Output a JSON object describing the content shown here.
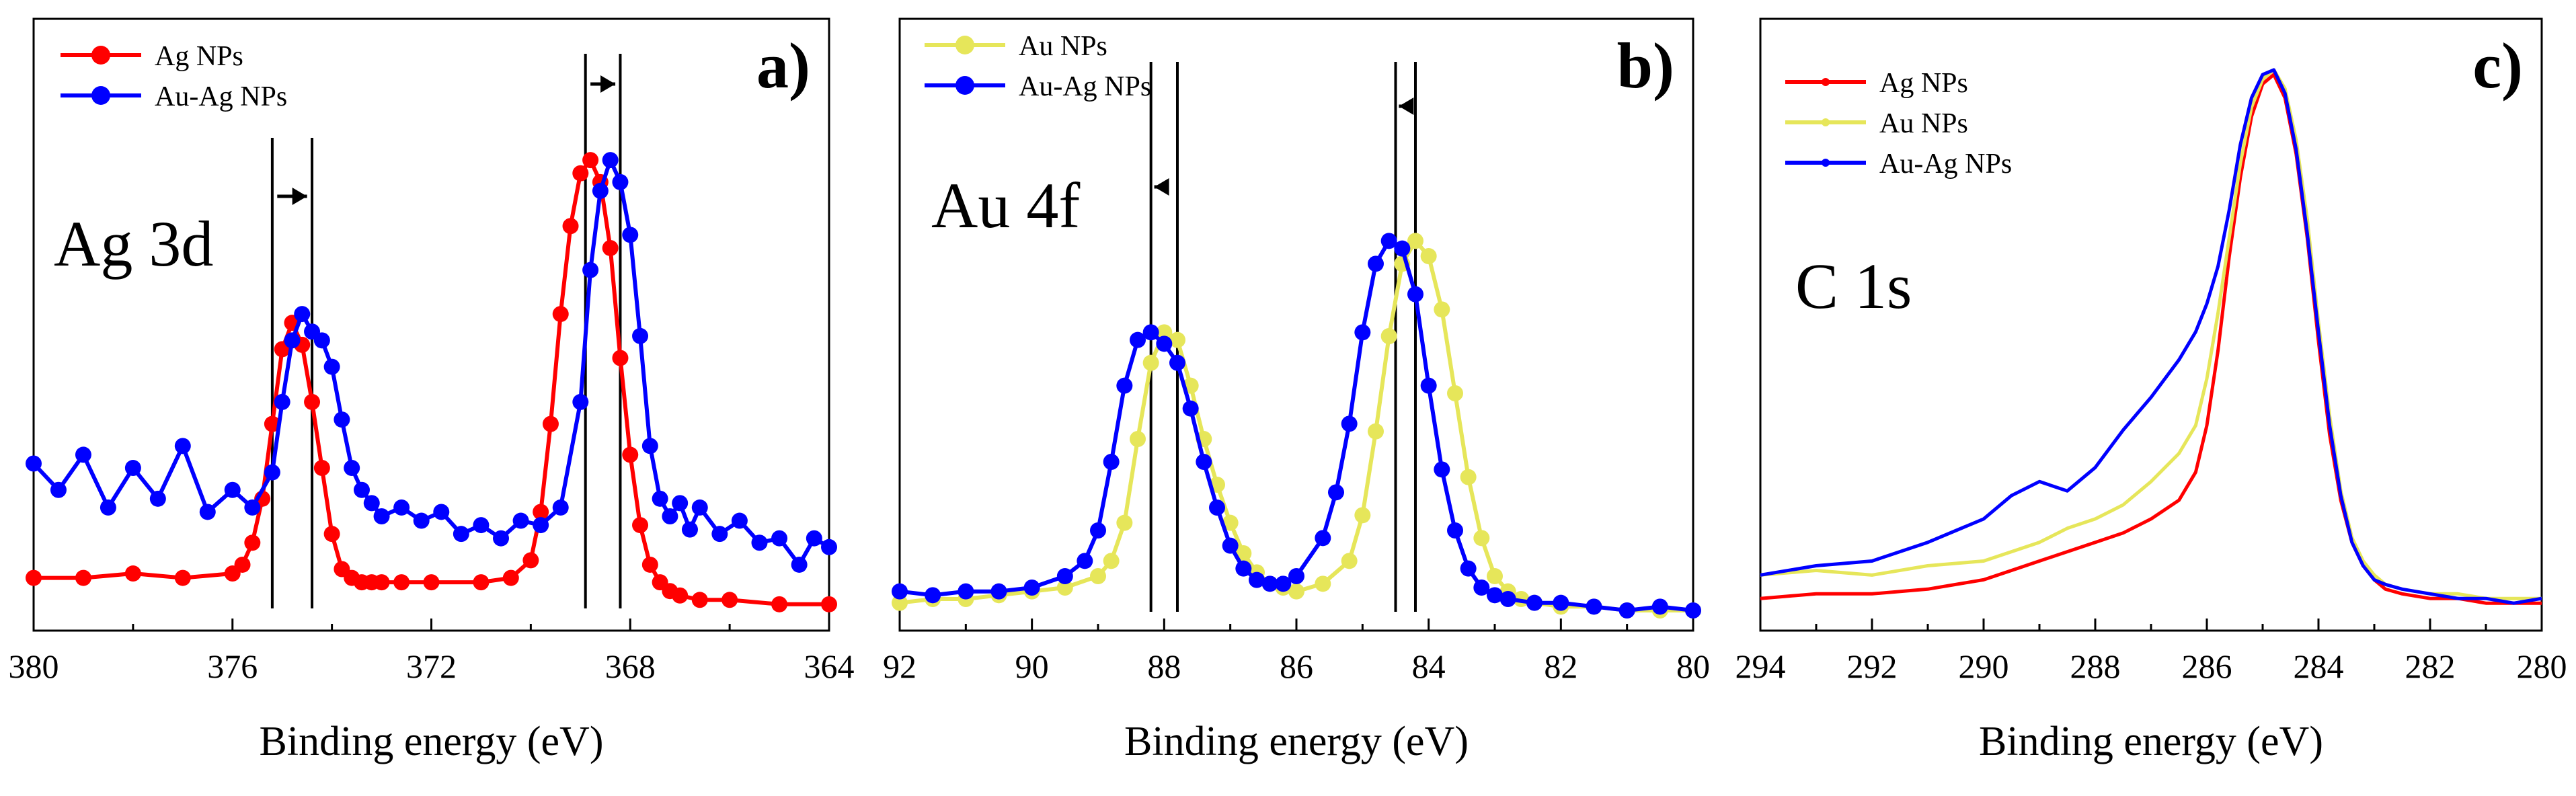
{
  "chart_data": [
    {
      "type": "line",
      "panel_label": "a)",
      "annotation": "Ag 3d",
      "xlabel": "Binding energy (eV)",
      "ylabel": "",
      "xlim": [
        380,
        364
      ],
      "ylim": [
        0,
        1.2
      ],
      "x_ticks": [
        380,
        376,
        372,
        368,
        364
      ],
      "legend": "top-left",
      "markers": true,
      "series": [
        {
          "name": "Ag NPs",
          "color": "#ff0000",
          "x": [
            380,
            379,
            378,
            377,
            376,
            375.8,
            375.6,
            375.4,
            375.2,
            375.0,
            374.8,
            374.6,
            374.4,
            374.2,
            374.0,
            373.8,
            373.6,
            373.4,
            373.2,
            373.0,
            372.6,
            372,
            371,
            370.4,
            370.0,
            369.8,
            369.6,
            369.4,
            369.2,
            369.0,
            368.8,
            368.6,
            368.4,
            368.2,
            368.0,
            367.8,
            367.6,
            367.4,
            367.2,
            367.0,
            366.6,
            366,
            365,
            364
          ],
          "y": [
            0.1,
            0.1,
            0.11,
            0.1,
            0.11,
            0.13,
            0.18,
            0.28,
            0.45,
            0.62,
            0.68,
            0.63,
            0.5,
            0.35,
            0.2,
            0.12,
            0.1,
            0.09,
            0.09,
            0.09,
            0.09,
            0.09,
            0.09,
            0.1,
            0.14,
            0.25,
            0.45,
            0.7,
            0.9,
            1.02,
            1.05,
            1.0,
            0.85,
            0.6,
            0.38,
            0.22,
            0.13,
            0.09,
            0.07,
            0.06,
            0.05,
            0.05,
            0.04,
            0.04
          ]
        },
        {
          "name": "Au-Ag NPs",
          "color": "#0000ff",
          "x": [
            380,
            379.5,
            379,
            378.5,
            378,
            377.5,
            377,
            376.5,
            376,
            375.6,
            375.2,
            375.0,
            374.8,
            374.6,
            374.4,
            374.2,
            374.0,
            373.8,
            373.6,
            373.4,
            373.2,
            373.0,
            372.6,
            372.2,
            371.8,
            371.4,
            371,
            370.6,
            370.2,
            369.8,
            369.4,
            369.0,
            368.8,
            368.6,
            368.4,
            368.2,
            368.0,
            367.8,
            367.6,
            367.4,
            367.2,
            367.0,
            366.8,
            366.6,
            366.2,
            365.8,
            365.4,
            365,
            364.6,
            364.3,
            364
          ],
          "y": [
            0.36,
            0.3,
            0.38,
            0.26,
            0.35,
            0.28,
            0.4,
            0.25,
            0.3,
            0.26,
            0.34,
            0.5,
            0.64,
            0.7,
            0.66,
            0.64,
            0.58,
            0.46,
            0.35,
            0.3,
            0.27,
            0.24,
            0.26,
            0.23,
            0.25,
            0.2,
            0.22,
            0.19,
            0.23,
            0.22,
            0.26,
            0.5,
            0.8,
            0.98,
            1.05,
            1.0,
            0.88,
            0.65,
            0.4,
            0.28,
            0.24,
            0.27,
            0.21,
            0.26,
            0.2,
            0.23,
            0.18,
            0.19,
            0.13,
            0.19,
            0.17
          ]
        }
      ],
      "marker_lines_x": [
        375.2,
        374.4,
        368.9,
        368.2
      ],
      "arrows": [
        {
          "from": 375.1,
          "to": 374.5
        },
        {
          "from": 368.8,
          "to": 368.3
        }
      ]
    },
    {
      "type": "line",
      "panel_label": "b)",
      "annotation": "Au 4f",
      "xlabel": "Binding energy (eV)",
      "ylabel": "",
      "xlim": [
        92,
        80
      ],
      "ylim": [
        0,
        1.2
      ],
      "x_ticks": [
        92,
        90,
        88,
        86,
        84,
        82,
        80
      ],
      "legend": "top-left",
      "markers": true,
      "series": [
        {
          "name": "Au NPs",
          "color": "#e6e65a",
          "x": [
            92,
            91.5,
            91,
            90.5,
            90,
            89.5,
            89,
            88.8,
            88.6,
            88.4,
            88.2,
            88.0,
            87.8,
            87.6,
            87.4,
            87.2,
            87.0,
            86.8,
            86.6,
            86.4,
            86.2,
            86.0,
            85.6,
            85.2,
            85.0,
            84.8,
            84.6,
            84.4,
            84.2,
            84.0,
            83.8,
            83.6,
            83.4,
            83.2,
            83.0,
            82.8,
            82.6,
            82.4,
            82.0,
            81.5,
            81,
            80.5,
            80
          ],
          "y": [
            0.05,
            0.06,
            0.06,
            0.07,
            0.08,
            0.09,
            0.12,
            0.16,
            0.26,
            0.48,
            0.68,
            0.76,
            0.74,
            0.62,
            0.48,
            0.36,
            0.26,
            0.18,
            0.13,
            0.1,
            0.09,
            0.08,
            0.1,
            0.16,
            0.28,
            0.5,
            0.75,
            0.94,
            1.0,
            0.96,
            0.82,
            0.6,
            0.38,
            0.22,
            0.12,
            0.08,
            0.06,
            0.05,
            0.04,
            0.04,
            0.03,
            0.03,
            0.03
          ]
        },
        {
          "name": "Au-Ag NPs",
          "color": "#0000ff",
          "x": [
            92,
            91.5,
            91,
            90.5,
            90,
            89.5,
            89.2,
            89.0,
            88.8,
            88.6,
            88.4,
            88.2,
            88.0,
            87.8,
            87.6,
            87.4,
            87.2,
            87.0,
            86.8,
            86.6,
            86.4,
            86.2,
            86.0,
            85.6,
            85.4,
            85.2,
            85.0,
            84.8,
            84.6,
            84.4,
            84.2,
            84.0,
            83.8,
            83.6,
            83.4,
            83.2,
            83.0,
            82.8,
            82.4,
            82,
            81.5,
            81,
            80.5,
            80
          ],
          "y": [
            0.08,
            0.07,
            0.08,
            0.08,
            0.09,
            0.12,
            0.16,
            0.24,
            0.42,
            0.62,
            0.74,
            0.76,
            0.73,
            0.68,
            0.56,
            0.42,
            0.3,
            0.2,
            0.14,
            0.11,
            0.1,
            0.1,
            0.12,
            0.22,
            0.34,
            0.52,
            0.76,
            0.94,
            1.0,
            0.98,
            0.86,
            0.62,
            0.4,
            0.24,
            0.14,
            0.09,
            0.07,
            0.06,
            0.05,
            0.05,
            0.04,
            0.03,
            0.04,
            0.03
          ]
        }
      ],
      "marker_lines_x": [
        88.2,
        87.8,
        84.5,
        84.2
      ],
      "arrows": [
        {
          "from": 87.95,
          "to": 88.15
        },
        {
          "from": 84.25,
          "to": 84.45
        }
      ]
    },
    {
      "type": "line",
      "panel_label": "c)",
      "annotation": "C 1s",
      "xlabel": "Binding energy (eV)",
      "ylabel": "",
      "xlim": [
        294,
        280
      ],
      "ylim": [
        0,
        1.2
      ],
      "x_ticks": [
        294,
        292,
        290,
        288,
        286,
        284,
        282,
        280
      ],
      "legend": "top-left",
      "markers": false,
      "series": [
        {
          "name": "Ag NPs",
          "color": "#ff0000",
          "x": [
            294,
            293,
            292,
            291,
            290,
            289.5,
            289,
            288.5,
            288,
            287.5,
            287,
            286.5,
            286.2,
            286,
            285.8,
            285.6,
            285.4,
            285.2,
            285.0,
            284.8,
            284.6,
            284.4,
            284.2,
            284.0,
            283.8,
            283.6,
            283.4,
            283.2,
            283.0,
            282.8,
            282.5,
            282,
            281.5,
            281,
            280.5,
            280
          ],
          "y": [
            0.05,
            0.06,
            0.06,
            0.07,
            0.09,
            0.11,
            0.13,
            0.15,
            0.17,
            0.19,
            0.22,
            0.26,
            0.32,
            0.42,
            0.58,
            0.78,
            0.95,
            1.08,
            1.15,
            1.17,
            1.12,
            1.0,
            0.82,
            0.6,
            0.4,
            0.26,
            0.17,
            0.12,
            0.09,
            0.07,
            0.06,
            0.05,
            0.05,
            0.04,
            0.04,
            0.04
          ]
        },
        {
          "name": "Au NPs",
          "color": "#e6e65a",
          "x": [
            294,
            293,
            292,
            291,
            290,
            289.5,
            289,
            288.5,
            288,
            287.5,
            287,
            286.5,
            286.2,
            286,
            285.8,
            285.6,
            285.4,
            285.2,
            285.0,
            284.8,
            284.6,
            284.4,
            284.2,
            284.0,
            283.8,
            283.6,
            283.4,
            283.2,
            283.0,
            282.8,
            282.5,
            282,
            281.5,
            281,
            280.5,
            280
          ],
          "y": [
            0.1,
            0.11,
            0.1,
            0.12,
            0.13,
            0.15,
            0.17,
            0.2,
            0.22,
            0.25,
            0.3,
            0.36,
            0.42,
            0.52,
            0.66,
            0.82,
            0.98,
            1.1,
            1.16,
            1.18,
            1.14,
            1.03,
            0.86,
            0.64,
            0.44,
            0.28,
            0.18,
            0.13,
            0.1,
            0.08,
            0.07,
            0.06,
            0.06,
            0.05,
            0.05,
            0.05
          ]
        },
        {
          "name": "Au-Ag NPs",
          "color": "#0000ff",
          "x": [
            294,
            293,
            292,
            291,
            290,
            289.5,
            289,
            288.5,
            288,
            287.5,
            287,
            286.5,
            286.2,
            286,
            285.8,
            285.6,
            285.4,
            285.2,
            285.0,
            284.8,
            284.6,
            284.4,
            284.2,
            284.0,
            283.8,
            283.6,
            283.4,
            283.2,
            283.0,
            282.8,
            282.5,
            282,
            281.5,
            281,
            280.5,
            280
          ],
          "y": [
            0.1,
            0.12,
            0.13,
            0.17,
            0.22,
            0.27,
            0.3,
            0.28,
            0.33,
            0.41,
            0.48,
            0.56,
            0.62,
            0.68,
            0.76,
            0.88,
            1.02,
            1.12,
            1.17,
            1.18,
            1.13,
            1.01,
            0.83,
            0.62,
            0.42,
            0.27,
            0.17,
            0.12,
            0.09,
            0.08,
            0.07,
            0.06,
            0.05,
            0.05,
            0.04,
            0.05
          ]
        }
      ]
    }
  ]
}
